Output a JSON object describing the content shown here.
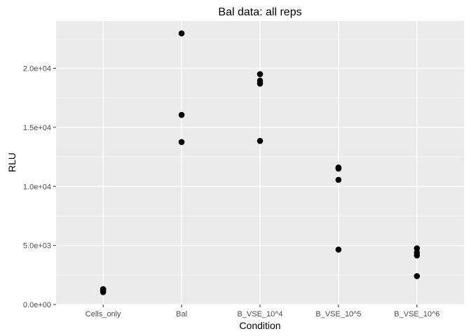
{
  "chart_data": {
    "type": "scatter",
    "title": "Bal data: all reps",
    "xlabel": "Condition",
    "ylabel": "RLU",
    "categories": [
      "Cells_only",
      "Bal",
      "B_VSE_10^4",
      "B_VSE_10^5",
      "B_VSE_10^6"
    ],
    "y_tick_values": [
      0,
      5000,
      10000,
      15000,
      20000
    ],
    "y_tick_labels": [
      "0.0e+00",
      "5.0e+03",
      "1.0e+04",
      "1.5e+04",
      "2.0e+04"
    ],
    "ylim": [
      0,
      24000
    ],
    "grid": true,
    "legend": "none",
    "points": [
      {
        "x": "Cells_only",
        "y": 1300
      },
      {
        "x": "Cells_only",
        "y": 1200
      },
      {
        "x": "Cells_only",
        "y": 1050
      },
      {
        "x": "Bal",
        "y": 22950
      },
      {
        "x": "Bal",
        "y": 16050
      },
      {
        "x": "Bal",
        "y": 13750
      },
      {
        "x": "B_VSE_10^4",
        "y": 19500
      },
      {
        "x": "B_VSE_10^4",
        "y": 18950
      },
      {
        "x": "B_VSE_10^4",
        "y": 18700
      },
      {
        "x": "B_VSE_10^4",
        "y": 13850
      },
      {
        "x": "B_VSE_10^5",
        "y": 11600
      },
      {
        "x": "B_VSE_10^5",
        "y": 11500
      },
      {
        "x": "B_VSE_10^5",
        "y": 10550
      },
      {
        "x": "B_VSE_10^5",
        "y": 4650
      },
      {
        "x": "B_VSE_10^6",
        "y": 4750
      },
      {
        "x": "B_VSE_10^6",
        "y": 4400
      },
      {
        "x": "B_VSE_10^6",
        "y": 4150
      },
      {
        "x": "B_VSE_10^6",
        "y": 2400
      }
    ],
    "colors": {
      "panel": "#ebebeb",
      "grid_major": "#ffffff",
      "grid_minor": "#f5f5f5",
      "point": "#000000",
      "tick": "#333333"
    }
  }
}
